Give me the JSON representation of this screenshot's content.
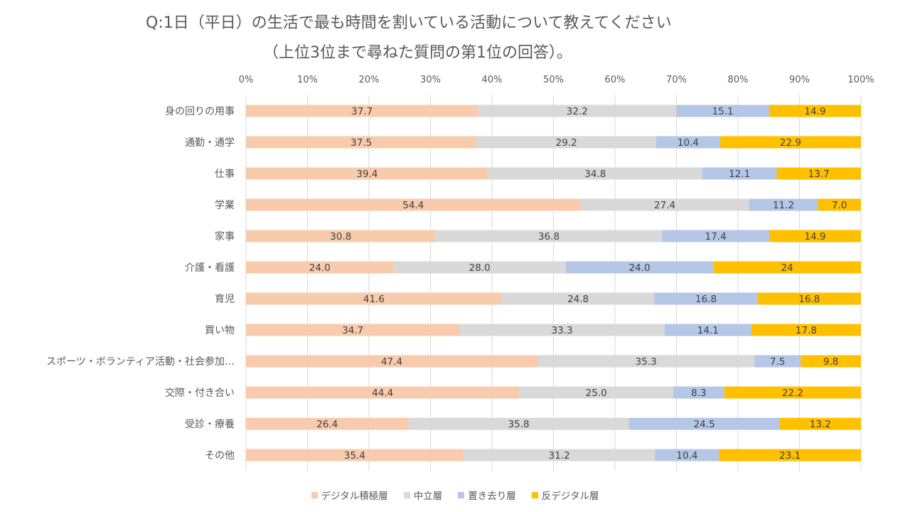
{
  "chart_data": {
    "type": "bar",
    "orientation": "horizontal",
    "stacked": true,
    "title_lines": [
      "Q:1日（平日）の生活で最も時間を割いている活動について教えてください",
      "（上位3位まで尋ねた質問の第1位の回答）。"
    ],
    "x_ticks": [
      "0%",
      "10%",
      "20%",
      "30%",
      "40%",
      "50%",
      "60%",
      "70%",
      "80%",
      "90%",
      "100%"
    ],
    "xlim": [
      0,
      100
    ],
    "grid": "vertical",
    "legend_position": "bottom",
    "categories": [
      "身の回りの用事",
      "通勤・通学",
      "仕事",
      "学業",
      "家事",
      "介護・看護",
      "育児",
      "買い物",
      "スポーツ・ボランティア活動・社会参加…",
      "交際・付き合い",
      "受診・療養",
      "その他"
    ],
    "series": [
      {
        "name": "デジタル積極層",
        "color": "#F8CBAD",
        "values": [
          37.7,
          37.5,
          39.4,
          54.4,
          30.8,
          24.0,
          41.6,
          34.7,
          47.4,
          44.4,
          26.4,
          35.4
        ],
        "labels": [
          "37.7",
          "37.5",
          "39.4",
          "54.4",
          "30.8",
          "24.0",
          "41.6",
          "34.7",
          "47.4",
          "44.4",
          "26.4",
          "35.4"
        ]
      },
      {
        "name": "中立層",
        "color": "#D9D9D9",
        "values": [
          32.2,
          29.2,
          34.8,
          27.4,
          36.8,
          28.0,
          24.8,
          33.3,
          35.3,
          25.0,
          35.8,
          31.2
        ],
        "labels": [
          "32.2",
          "29.2",
          "34.8",
          "27.4",
          "36.8",
          "28.0",
          "24.8",
          "33.3",
          "35.3",
          "25.0",
          "35.8",
          "31.2"
        ]
      },
      {
        "name": "置き去り層",
        "color": "#B4C7E7",
        "values": [
          15.1,
          10.4,
          12.1,
          11.2,
          17.4,
          24.0,
          16.8,
          14.1,
          7.5,
          8.3,
          24.5,
          10.4
        ],
        "labels": [
          "15.1",
          "10.4",
          "12.1",
          "11.2",
          "17.4",
          "24.0",
          "16.8",
          "14.1",
          "7.5",
          "8.3",
          "24.5",
          "10.4"
        ]
      },
      {
        "name": "反デジタル層",
        "color": "#FFC000",
        "values": [
          14.9,
          22.9,
          13.7,
          7.0,
          14.9,
          24,
          16.8,
          17.8,
          9.8,
          22.2,
          13.2,
          23.1
        ],
        "labels": [
          "14.9",
          "22.9",
          "13.7",
          "7.0",
          "14.9",
          "24",
          "16.8",
          "17.8",
          "9.8",
          "22.2",
          "13.2",
          "23.1"
        ]
      }
    ]
  }
}
